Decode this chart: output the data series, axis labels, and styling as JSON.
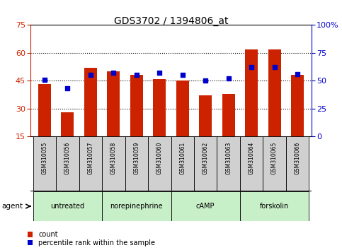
{
  "title": "GDS3702 / 1394806_at",
  "samples": [
    "GSM310055",
    "GSM310056",
    "GSM310057",
    "GSM310058",
    "GSM310059",
    "GSM310060",
    "GSM310061",
    "GSM310062",
    "GSM310063",
    "GSM310064",
    "GSM310065",
    "GSM310066"
  ],
  "count_values": [
    43,
    28,
    52,
    50,
    48,
    46,
    45,
    37,
    38,
    62,
    62,
    48
  ],
  "percentile_values": [
    51,
    43,
    55,
    57,
    55,
    57,
    55,
    50,
    52,
    62,
    62,
    56
  ],
  "agent_groups": [
    {
      "label": "untreated",
      "start": 0,
      "end": 3
    },
    {
      "label": "norepinephrine",
      "start": 3,
      "end": 6
    },
    {
      "label": "cAMP",
      "start": 6,
      "end": 9
    },
    {
      "label": "forskolin",
      "start": 9,
      "end": 12
    }
  ],
  "left_ylim": [
    15,
    75
  ],
  "left_yticks": [
    15,
    30,
    45,
    60,
    75
  ],
  "right_ylim": [
    0,
    100
  ],
  "right_yticks": [
    0,
    25,
    50,
    75,
    100
  ],
  "right_yticklabels": [
    "0",
    "25",
    "50",
    "75",
    "100%"
  ],
  "bar_color": "#cc2200",
  "dot_color": "#0000cc",
  "bg_color": "#ffffff",
  "plot_bg_color": "#ffffff",
  "agent_bg_color_light": "#c8f0c8",
  "agent_bg_color_dark": "#66dd66",
  "sample_bg_color": "#d0d0d0",
  "bar_width": 0.55,
  "legend_count_label": "count",
  "legend_pct_label": "percentile rank within the sample",
  "grid_yticks": [
    30,
    45,
    60
  ],
  "left_spine_color": "#cc2200",
  "right_spine_color": "#0000cc"
}
